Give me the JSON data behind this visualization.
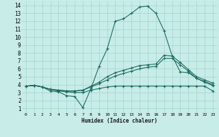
{
  "xlabel": "Humidex (Indice chaleur)",
  "background_color": "#c8ece8",
  "grid_color": "#a0d4cc",
  "line_color": "#1a6b60",
  "xlim": [
    -0.5,
    23.5
  ],
  "ylim": [
    0.5,
    14.5
  ],
  "xticks": [
    0,
    1,
    2,
    3,
    4,
    5,
    6,
    7,
    8,
    9,
    10,
    11,
    12,
    13,
    14,
    15,
    16,
    17,
    18,
    19,
    20,
    21,
    22,
    23
  ],
  "yticks": [
    1,
    2,
    3,
    4,
    5,
    6,
    7,
    8,
    9,
    10,
    11,
    12,
    13,
    14
  ],
  "series": [
    {
      "x": [
        0,
        1,
        2,
        3,
        4,
        5,
        6,
        7,
        8,
        9,
        10,
        11,
        12,
        13,
        14,
        15,
        16,
        17,
        18,
        19,
        20,
        21,
        22,
        23
      ],
      "y": [
        3.8,
        3.9,
        3.7,
        3.2,
        3.1,
        2.6,
        2.5,
        1.1,
        3.5,
        6.3,
        8.5,
        12.0,
        12.3,
        13.0,
        13.8,
        13.9,
        13.0,
        10.8,
        7.6,
        5.6,
        5.5,
        4.8,
        4.3,
        3.9
      ],
      "marker": "+"
    },
    {
      "x": [
        0,
        1,
        2,
        3,
        4,
        5,
        6,
        7,
        8,
        9,
        10,
        11,
        12,
        13,
        14,
        15,
        16,
        17,
        18,
        19,
        20,
        21,
        22,
        23
      ],
      "y": [
        3.8,
        3.9,
        3.7,
        3.4,
        3.3,
        3.2,
        3.2,
        3.3,
        3.8,
        4.3,
        5.0,
        5.5,
        5.8,
        6.1,
        6.4,
        6.5,
        6.6,
        7.7,
        7.6,
        6.8,
        5.9,
        5.0,
        4.6,
        4.2
      ],
      "marker": "+"
    },
    {
      "x": [
        0,
        1,
        2,
        3,
        4,
        5,
        6,
        7,
        8,
        9,
        10,
        11,
        12,
        13,
        14,
        15,
        16,
        17,
        18,
        19,
        20,
        21,
        22,
        23
      ],
      "y": [
        3.8,
        3.9,
        3.7,
        3.4,
        3.3,
        3.2,
        3.2,
        3.3,
        3.7,
        4.1,
        4.6,
        5.1,
        5.4,
        5.7,
        6.0,
        6.2,
        6.3,
        7.3,
        7.3,
        6.5,
        5.7,
        4.8,
        4.4,
        4.0
      ],
      "marker": "+"
    },
    {
      "x": [
        0,
        1,
        2,
        3,
        4,
        5,
        6,
        7,
        8,
        9,
        10,
        11,
        12,
        13,
        14,
        15,
        16,
        17,
        18,
        19,
        20,
        21,
        22,
        23
      ],
      "y": [
        3.8,
        3.9,
        3.7,
        3.4,
        3.2,
        3.1,
        3.0,
        3.0,
        3.3,
        3.5,
        3.7,
        3.8,
        3.8,
        3.8,
        3.8,
        3.8,
        3.8,
        3.8,
        3.8,
        3.8,
        3.8,
        3.8,
        3.8,
        3.2
      ],
      "marker": "+"
    }
  ]
}
